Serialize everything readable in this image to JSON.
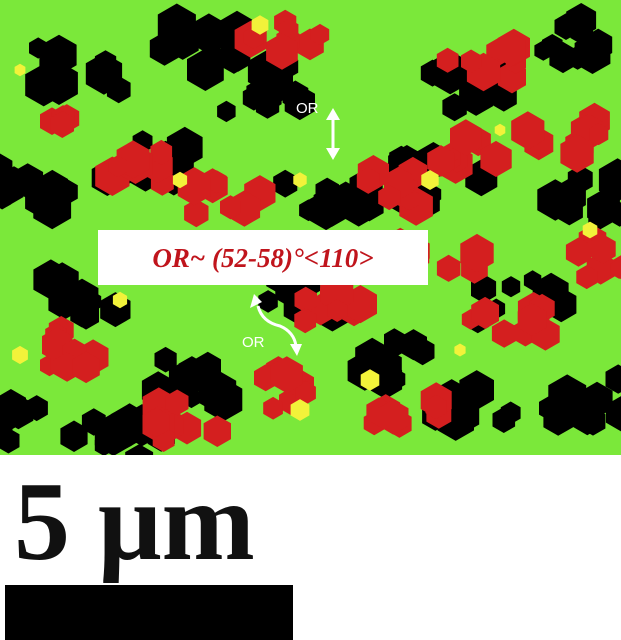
{
  "annotations": {
    "main": "OR~ (52-58)°<110>",
    "or_top": "OR",
    "or_bottom": "OR"
  },
  "scale_bar": {
    "label": "5 μm"
  }
}
